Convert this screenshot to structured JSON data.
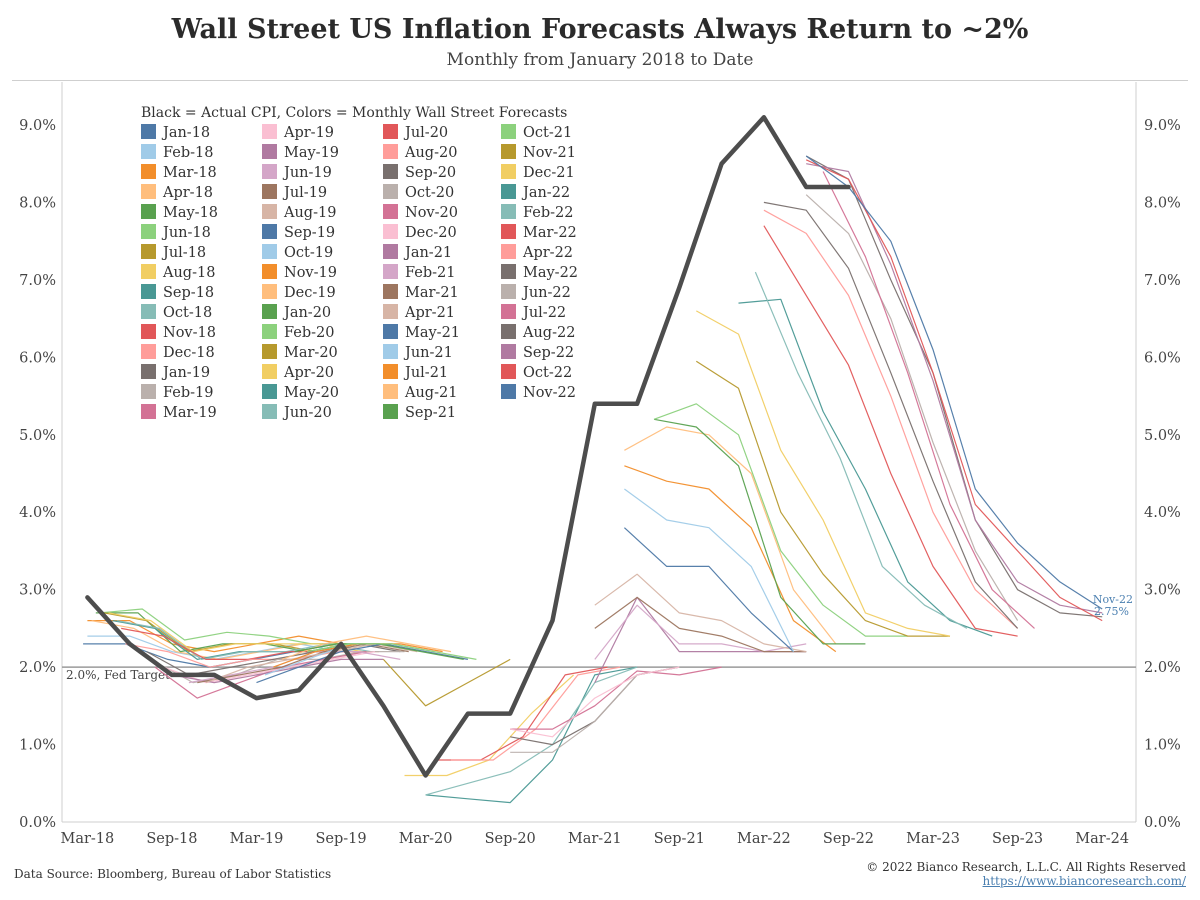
{
  "title": "Wall Street US Inflation Forecasts Always Return to ~2%",
  "subtitle": "Monthly from January 2018 to Date",
  "footer": {
    "source": "Data Source: Bloomberg, Bureau of Labor Statistics",
    "copyright": "© 2022 Bianco Research, L.L.C. All Rights Reserved",
    "url": "https://www.biancoresearch.com/"
  },
  "chart_data": {
    "type": "line",
    "title": "Wall Street US Inflation Forecasts Always Return to ~2%",
    "legend_title": "Black = Actual CPI, Colors = Monthly Wall Street Forecasts",
    "legend_placement": "top-left",
    "x_ticks": [
      "Mar-18",
      "Sep-18",
      "Mar-19",
      "Sep-19",
      "Mar-20",
      "Sep-20",
      "Mar-21",
      "Sep-21",
      "Mar-22",
      "Sep-22",
      "Mar-23",
      "Sep-23",
      "Mar-24"
    ],
    "x_tick_quarters": [
      0,
      2,
      4,
      6,
      8,
      10,
      12,
      14,
      16,
      18,
      20,
      22,
      24
    ],
    "x_range_quarters": [
      -0.6,
      24.8
    ],
    "y_ticks": [
      "0.0%",
      "1.0%",
      "2.0%",
      "3.0%",
      "4.0%",
      "5.0%",
      "6.0%",
      "7.0%",
      "8.0%",
      "9.0%"
    ],
    "ylim": [
      0,
      9.0
    ],
    "reference_line": {
      "value": 2.0,
      "label": "2.0%, Fed Target",
      "color": "#9a9a9a"
    },
    "end_annotation": {
      "label": "Nov-22",
      "value_label": "2.75%",
      "value": 2.75,
      "color": "#4a7fb0"
    },
    "actual_cpi": {
      "name": "Actual CPI",
      "color": "#4d4d4d",
      "x": [
        0,
        1,
        2,
        3,
        4,
        5,
        6,
        7,
        8,
        9,
        10,
        11,
        12,
        13,
        14,
        15,
        16,
        17,
        18
      ],
      "values": [
        2.9,
        2.3,
        1.9,
        1.9,
        1.6,
        1.7,
        2.3,
        1.5,
        0.6,
        1.4,
        1.4,
        2.6,
        5.4,
        5.4,
        6.9,
        8.5,
        9.1,
        8.2,
        8.2
      ]
    },
    "series": [
      {
        "name": "Jan-18",
        "color": "#4e79a7",
        "start": -0.1,
        "values": [
          2.3,
          2.3,
          2.1,
          2.0,
          2.1,
          2.2,
          2.3
        ]
      },
      {
        "name": "Feb-18",
        "color": "#a0cbe8",
        "start": 0.0,
        "values": [
          2.4,
          2.4,
          2.2,
          2.1,
          2.2,
          2.3,
          2.2
        ]
      },
      {
        "name": "Mar-18",
        "color": "#f28e2b",
        "start": 0.0,
        "values": [
          2.6,
          2.6,
          2.3,
          2.2,
          2.3,
          2.4,
          2.3
        ]
      },
      {
        "name": "Apr-18",
        "color": "#ffbe7d",
        "start": 0.1,
        "values": [
          2.6,
          2.5,
          2.2,
          2.1,
          2.2,
          2.3,
          2.3
        ]
      },
      {
        "name": "May-18",
        "color": "#59a14f",
        "start": 0.2,
        "values": [
          2.7,
          2.7,
          2.2,
          2.3,
          2.3,
          2.2,
          2.3
        ]
      },
      {
        "name": "Jun-18",
        "color": "#8cd17d",
        "start": 0.3,
        "values": [
          2.7,
          2.75,
          2.35,
          2.45,
          2.4,
          2.3,
          2.3
        ]
      },
      {
        "name": "Jul-18",
        "color": "#b6992d",
        "start": 0.4,
        "values": [
          2.7,
          2.6,
          2.2,
          2.3,
          2.3,
          2.2,
          2.2
        ]
      },
      {
        "name": "Aug-18",
        "color": "#f1ce63",
        "start": 0.5,
        "values": [
          2.7,
          2.6,
          2.2,
          2.3,
          2.3,
          2.3,
          2.2
        ]
      },
      {
        "name": "Sep-18",
        "color": "#499894",
        "start": 0.6,
        "values": [
          2.6,
          2.5,
          2.1,
          2.2,
          2.2,
          2.2,
          2.2
        ]
      },
      {
        "name": "Oct-18",
        "color": "#86bcb6",
        "start": 0.7,
        "values": [
          2.6,
          2.5,
          2.1,
          2.2,
          2.2,
          2.3,
          2.2
        ]
      },
      {
        "name": "Nov-18",
        "color": "#e15759",
        "start": 0.8,
        "values": [
          2.5,
          2.4,
          2.1,
          2.1,
          2.2,
          2.2,
          2.2
        ]
      },
      {
        "name": "Dec-18",
        "color": "#ff9d9a",
        "start": 0.9,
        "values": [
          2.3,
          2.2,
          2.0,
          2.1,
          2.1,
          2.2,
          2.2
        ]
      },
      {
        "name": "Jan-19",
        "color": "#79706e",
        "start": 1.4,
        "values": [
          2.2,
          1.9,
          2.0,
          2.1,
          2.2,
          2.3,
          2.2
        ]
      },
      {
        "name": "Feb-19",
        "color": "#bab0ac",
        "start": 1.5,
        "values": [
          2.1,
          1.8,
          1.9,
          2.1,
          2.1,
          2.2,
          2.2
        ]
      },
      {
        "name": "Mar-19",
        "color": "#d37295",
        "start": 1.6,
        "values": [
          2.0,
          1.6,
          1.8,
          2.0,
          2.1,
          2.2
        ]
      },
      {
        "name": "Apr-19",
        "color": "#fabfd2",
        "start": 1.8,
        "values": [
          2.0,
          1.8,
          1.9,
          2.0,
          2.1,
          2.2
        ]
      },
      {
        "name": "May-19",
        "color": "#b07aa1",
        "start": 2.0,
        "values": [
          1.9,
          1.8,
          1.9,
          2.0,
          2.1,
          2.1
        ]
      },
      {
        "name": "Jun-19",
        "color": "#d4a6c8",
        "start": 2.4,
        "values": [
          1.8,
          1.9,
          2.0,
          2.2,
          2.2,
          2.1
        ]
      },
      {
        "name": "Jul-19",
        "color": "#9d7660",
        "start": 2.6,
        "values": [
          1.8,
          1.9,
          2.0,
          2.2,
          2.3,
          2.2
        ]
      },
      {
        "name": "Aug-19",
        "color": "#d7b5a6",
        "start": 2.8,
        "values": [
          1.8,
          2.0,
          2.1,
          2.2,
          2.3,
          2.2
        ]
      },
      {
        "name": "Sep-19",
        "color": "#4e79a7",
        "start": 4.0,
        "values": [
          1.8,
          2.0,
          2.2,
          2.3,
          2.2,
          2.1
        ]
      },
      {
        "name": "Oct-19",
        "color": "#a0cbe8",
        "start": 4.2,
        "values": [
          1.9,
          2.1,
          2.3,
          2.3,
          2.2
        ]
      },
      {
        "name": "Nov-19",
        "color": "#f28e2b",
        "start": 4.4,
        "values": [
          2.0,
          2.2,
          2.3,
          2.3,
          2.2
        ]
      },
      {
        "name": "Dec-19",
        "color": "#ffbe7d",
        "start": 4.6,
        "values": [
          2.1,
          2.3,
          2.4,
          2.3,
          2.2
        ]
      },
      {
        "name": "Jan-20",
        "color": "#59a14f",
        "start": 4.9,
        "values": [
          2.2,
          2.3,
          2.3,
          2.2,
          2.1
        ]
      },
      {
        "name": "Feb-20",
        "color": "#8cd17d",
        "start": 5.2,
        "values": [
          2.2,
          2.3,
          2.3,
          2.2,
          2.1
        ]
      },
      {
        "name": "Mar-20",
        "color": "#b6992d",
        "start": 7.0,
        "values": [
          2.1,
          1.5,
          1.8,
          2.1
        ]
      },
      {
        "name": "Apr-20",
        "color": "#f1ce63",
        "start": 7.5,
        "values": [
          0.6,
          0.6,
          0.8,
          1.4,
          1.9
        ]
      },
      {
        "name": "May-20",
        "color": "#499894",
        "start": 8.0,
        "values": [
          0.35,
          0.3,
          0.25,
          0.8,
          1.9,
          2.0
        ]
      },
      {
        "name": "Jun-20",
        "color": "#86bcb6",
        "start": 8.0,
        "values": [
          0.35,
          0.5,
          0.65,
          1.0,
          1.8,
          2.0
        ]
      },
      {
        "name": "Jul-20",
        "color": "#e15759",
        "start": 8.3,
        "values": [
          0.8,
          0.8,
          1.1,
          1.9,
          2.0
        ]
      },
      {
        "name": "Aug-20",
        "color": "#ff9d9a",
        "start": 8.6,
        "values": [
          0.8,
          0.8,
          1.2,
          1.9,
          2.0
        ]
      },
      {
        "name": "Sep-20",
        "color": "#79706e",
        "start": 10.0,
        "values": [
          1.1,
          1.0,
          1.3,
          1.9,
          2.0
        ]
      },
      {
        "name": "Oct-20",
        "color": "#bab0ac",
        "start": 10.0,
        "values": [
          0.9,
          0.9,
          1.3,
          1.9,
          2.0
        ]
      },
      {
        "name": "Nov-20",
        "color": "#d37295",
        "start": 10.0,
        "values": [
          1.2,
          1.2,
          1.5,
          1.95,
          1.9,
          2.0
        ]
      },
      {
        "name": "Dec-20",
        "color": "#fabfd2",
        "start": 10.0,
        "values": [
          1.2,
          1.1,
          1.6,
          1.9,
          2.0
        ]
      },
      {
        "name": "Jan-21",
        "color": "#b07aa1",
        "start": 12.0,
        "values": [
          1.8,
          2.9,
          2.2,
          2.2,
          2.2,
          2.2
        ]
      },
      {
        "name": "Feb-21",
        "color": "#d4a6c8",
        "start": 12.0,
        "values": [
          2.1,
          2.8,
          2.3,
          2.3,
          2.2,
          2.3
        ]
      },
      {
        "name": "Mar-21",
        "color": "#9d7660",
        "start": 12.0,
        "values": [
          2.5,
          2.9,
          2.5,
          2.4,
          2.2,
          2.2
        ]
      },
      {
        "name": "Apr-21",
        "color": "#d7b5a6",
        "start": 12.0,
        "values": [
          2.8,
          3.2,
          2.7,
          2.6,
          2.3,
          2.2
        ]
      },
      {
        "name": "May-21",
        "color": "#4e79a7",
        "start": 12.7,
        "values": [
          3.8,
          3.3,
          3.3,
          2.7,
          2.2
        ]
      },
      {
        "name": "Jun-21",
        "color": "#a0cbe8",
        "start": 12.7,
        "values": [
          4.3,
          3.9,
          3.8,
          3.3,
          2.2
        ]
      },
      {
        "name": "Jul-21",
        "color": "#f28e2b",
        "start": 12.7,
        "values": [
          4.6,
          4.4,
          4.3,
          3.8,
          2.6,
          2.2
        ]
      },
      {
        "name": "Aug-21",
        "color": "#ffbe7d",
        "start": 12.7,
        "values": [
          4.8,
          5.1,
          5.0,
          4.5,
          3.0,
          2.3
        ]
      },
      {
        "name": "Sep-21",
        "color": "#59a14f",
        "start": 13.4,
        "values": [
          5.2,
          5.1,
          4.6,
          2.9,
          2.3,
          2.3
        ]
      },
      {
        "name": "Oct-21",
        "color": "#8cd17d",
        "start": 13.4,
        "values": [
          5.2,
          5.4,
          5.0,
          3.5,
          2.8,
          2.4,
          2.4
        ]
      },
      {
        "name": "Nov-21",
        "color": "#b6992d",
        "start": 14.4,
        "values": [
          5.95,
          5.6,
          4.0,
          3.2,
          2.6,
          2.4,
          2.4
        ]
      },
      {
        "name": "Dec-21",
        "color": "#f1ce63",
        "start": 14.4,
        "values": [
          6.6,
          6.3,
          4.8,
          3.9,
          2.7,
          2.5,
          2.4
        ]
      },
      {
        "name": "Jan-22",
        "color": "#499894",
        "start": 15.4,
        "values": [
          6.7,
          6.75,
          5.3,
          4.3,
          3.1,
          2.6,
          2.4
        ]
      },
      {
        "name": "Feb-22",
        "color": "#86bcb6",
        "start": 15.8,
        "values": [
          7.1,
          5.8,
          4.7,
          3.3,
          2.8,
          2.5
        ]
      },
      {
        "name": "Mar-22",
        "color": "#e15759",
        "start": 16.0,
        "values": [
          7.7,
          6.8,
          5.9,
          4.5,
          3.3,
          2.5,
          2.4
        ]
      },
      {
        "name": "Apr-22",
        "color": "#ff9d9a",
        "start": 16.0,
        "values": [
          7.9,
          7.6,
          6.8,
          5.5,
          4.0,
          3.0,
          2.5
        ]
      },
      {
        "name": "May-22",
        "color": "#79706e",
        "start": 16.0,
        "values": [
          8.0,
          7.9,
          7.15,
          5.8,
          4.4,
          3.1,
          2.5
        ]
      },
      {
        "name": "Jun-22",
        "color": "#bab0ac",
        "start": 17.0,
        "values": [
          8.1,
          7.6,
          6.5,
          4.9,
          3.5,
          2.6
        ]
      },
      {
        "name": "Jul-22",
        "color": "#d37295",
        "start": 17.4,
        "values": [
          8.4,
          7.3,
          5.8,
          4.1,
          3.0,
          2.5
        ]
      },
      {
        "name": "Aug-22",
        "color": "#79706e",
        "start": 17.0,
        "values": [
          8.6,
          8.3,
          7.0,
          5.8,
          3.9,
          3.0,
          2.7,
          2.65
        ]
      },
      {
        "name": "Sep-22",
        "color": "#b07aa1",
        "start": 17.0,
        "values": [
          8.5,
          8.4,
          7.2,
          5.7,
          3.9,
          3.1,
          2.8,
          2.7
        ]
      },
      {
        "name": "Oct-22",
        "color": "#e15759",
        "start": 17.0,
        "values": [
          8.55,
          8.3,
          7.3,
          5.8,
          4.1,
          3.5,
          2.9,
          2.6
        ]
      },
      {
        "name": "Nov-22",
        "color": "#4e79a7",
        "start": 17.0,
        "values": [
          8.6,
          8.2,
          7.5,
          6.1,
          4.3,
          3.6,
          3.1,
          2.75
        ]
      }
    ]
  }
}
